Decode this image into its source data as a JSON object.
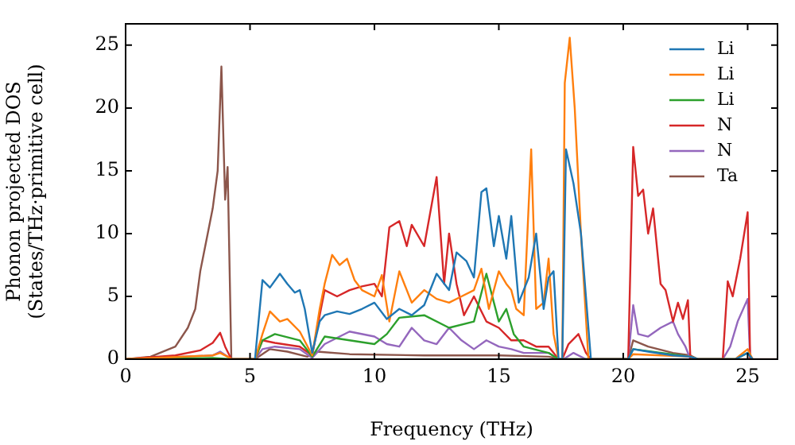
{
  "chart_data": {
    "type": "line",
    "xlabel": "Frequency (THz)",
    "ylabel": "Phonon projected DOS\n(States/THz·primitive cell)",
    "xlim": [
      0,
      26.2
    ],
    "ylim": [
      0,
      26.7
    ],
    "xticks": [
      0,
      5,
      10,
      15,
      20,
      25
    ],
    "yticks": [
      0,
      5,
      10,
      15,
      20,
      25
    ],
    "grid": false,
    "legend": "top right",
    "marker": "none",
    "line_style": "solid",
    "series": [
      {
        "name": "Li",
        "color": "#1f77b4",
        "x": [
          5.2,
          5.5,
          5.8,
          6.2,
          6.5,
          6.8,
          7.0,
          7.2,
          7.5,
          7.8,
          8,
          8.5,
          9,
          9.5,
          10,
          10.5,
          11,
          11.5,
          12,
          12.5,
          13,
          13.3,
          13.7,
          14,
          14.3,
          14.5,
          14.8,
          15,
          15.3,
          15.5,
          15.8,
          16.2,
          16.5,
          16.8,
          17,
          17.2,
          17.4,
          17.55,
          17.7,
          18.0,
          18.3,
          18.5,
          18.7,
          20.2,
          20.4,
          21,
          22,
          22.7,
          23,
          24.5,
          25,
          25.2
        ],
        "values": [
          0,
          6.3,
          5.7,
          6.8,
          6,
          5.3,
          5.5,
          4,
          0.5,
          3,
          3.5,
          3.8,
          3.6,
          4,
          4.5,
          3.2,
          4,
          3.5,
          4.3,
          6.8,
          5.5,
          8.5,
          7.8,
          6.5,
          13.3,
          13.6,
          9,
          11.4,
          8,
          11.4,
          4.5,
          6.5,
          10,
          4,
          6.5,
          7,
          0,
          0,
          16.7,
          14,
          10,
          5,
          0,
          0,
          0.8,
          0.6,
          0.3,
          0.2,
          0,
          0,
          0.5,
          0
        ]
      },
      {
        "name": "Li",
        "color": "#ff7f0e",
        "x": [
          0,
          3.5,
          3.8,
          4.1,
          4.25,
          5.2,
          5.5,
          5.8,
          6.2,
          6.5,
          7,
          7.5,
          7.8,
          8,
          8.3,
          8.6,
          8.9,
          9.2,
          9.5,
          10,
          10.3,
          10.6,
          11,
          11.5,
          12,
          12.5,
          13,
          13.5,
          14,
          14.3,
          14.6,
          15,
          15.3,
          15.5,
          15.7,
          16,
          16.3,
          16.5,
          16.8,
          17,
          17.2,
          17.4,
          17.55,
          17.65,
          17.85,
          18.05,
          18.3,
          18.6,
          20.2,
          20.4,
          22.7,
          23,
          24.5,
          25,
          25.2
        ],
        "values": [
          0,
          0.3,
          0.5,
          0.2,
          0,
          0,
          2,
          3.8,
          3,
          3.2,
          2.2,
          0.3,
          4,
          6,
          8.3,
          7.5,
          8,
          6.3,
          5.5,
          5,
          6.7,
          3,
          7,
          4.5,
          5.5,
          4.8,
          4.5,
          5,
          5.5,
          7.2,
          4,
          7,
          6,
          5.5,
          4,
          3.5,
          16.7,
          4,
          4.5,
          8,
          2,
          0,
          0,
          22,
          25.6,
          20,
          10,
          0,
          0,
          0.4,
          0.2,
          0,
          0,
          0.8,
          0
        ]
      },
      {
        "name": "Li",
        "color": "#2ca02c",
        "x": [
          0,
          3.5,
          4.25,
          5.2,
          5.5,
          6,
          7,
          7.5,
          8,
          9,
          10,
          10.5,
          11,
          12,
          13,
          14,
          14.5,
          15,
          15.3,
          15.6,
          16,
          17,
          17.4,
          20.2,
          20.4,
          22.7,
          23,
          24.5,
          25,
          25.2
        ],
        "values": [
          0,
          0.1,
          0,
          0,
          1.5,
          2,
          1.5,
          0.2,
          1.8,
          1.5,
          1.2,
          2,
          3.3,
          3.5,
          2.5,
          3,
          6.8,
          3,
          4,
          2,
          1,
          0.5,
          0,
          0,
          0.8,
          0.2,
          0,
          0,
          0.5,
          0
        ]
      },
      {
        "name": "N",
        "color": "#d62728",
        "x": [
          0,
          2,
          3,
          3.5,
          3.8,
          4.0,
          4.25,
          5.2,
          5.5,
          6,
          7,
          7.5,
          7.8,
          8,
          8.5,
          9,
          9.5,
          10,
          10.3,
          10.6,
          11,
          11.3,
          11.5,
          12,
          12.5,
          12.8,
          13,
          13.3,
          13.6,
          14,
          14.5,
          15,
          15.5,
          16,
          16.5,
          17,
          17.2,
          17.4,
          17.55,
          17.8,
          18.2,
          18.5,
          18.7,
          20.2,
          20.4,
          20.6,
          20.8,
          21,
          21.2,
          21.5,
          21.7,
          22,
          22.2,
          22.4,
          22.6,
          22.7,
          24.0,
          24.2,
          24.4,
          24.7,
          25.0,
          25.1
        ],
        "values": [
          0,
          0.3,
          0.7,
          1.3,
          2.1,
          1,
          0,
          0,
          1.5,
          1.3,
          1,
          0.3,
          3.5,
          5.5,
          5,
          5.5,
          5.8,
          6,
          5,
          10.5,
          11,
          9,
          10.7,
          9,
          14.5,
          6,
          10,
          6,
          3.5,
          5,
          3,
          2.5,
          1.5,
          1.5,
          1,
          1,
          0.5,
          0,
          0,
          1.2,
          2,
          0.5,
          0,
          0,
          16.9,
          13,
          13.5,
          10,
          12,
          6,
          5.5,
          3,
          4.5,
          3.2,
          4.7,
          0,
          0,
          6.2,
          5,
          8,
          11.7,
          0
        ]
      },
      {
        "name": "N",
        "color": "#9467bd",
        "x": [
          0,
          3.5,
          3.8,
          4.1,
          4.25,
          5.2,
          5.5,
          6,
          7,
          7.5,
          8,
          9,
          10,
          10.5,
          11,
          11.5,
          12,
          12.5,
          13,
          13.5,
          14,
          14.5,
          15,
          15.5,
          16,
          17,
          17.4,
          17.6,
          18,
          18.5,
          20.2,
          20.4,
          20.6,
          21,
          21.5,
          22,
          22.2,
          22.5,
          22.7,
          24.0,
          24.3,
          24.6,
          25.0,
          25.1
        ],
        "values": [
          0,
          0.3,
          0.6,
          0.2,
          0,
          0,
          0.8,
          1,
          0.8,
          0.1,
          1.2,
          2.2,
          1.8,
          1.2,
          1,
          2.5,
          1.5,
          1.2,
          2.5,
          1.5,
          0.8,
          1.5,
          1,
          0.8,
          0.5,
          0.5,
          0,
          0,
          0.5,
          0,
          0,
          4.3,
          2,
          1.8,
          2.5,
          3,
          2,
          1,
          0,
          0,
          1,
          3,
          4.8,
          0
        ]
      },
      {
        "name": "Ta",
        "color": "#8c564b",
        "x": [
          0,
          1,
          2,
          2.5,
          2.8,
          3.0,
          3.3,
          3.5,
          3.7,
          3.85,
          4.0,
          4.1,
          4.25,
          5.2,
          5.8,
          6.5,
          7.3,
          7.7,
          9,
          12,
          15,
          17,
          17.5,
          20.2,
          20.4,
          21,
          22,
          22.7,
          23,
          26.2
        ],
        "values": [
          0,
          0.2,
          1,
          2.5,
          4,
          7,
          10,
          12,
          15,
          23.3,
          12.7,
          15.3,
          0,
          0,
          0.8,
          0.6,
          0.2,
          0.6,
          0.4,
          0.3,
          0.3,
          0.2,
          0,
          0,
          1.5,
          1,
          0.5,
          0.3,
          0,
          0
        ]
      }
    ]
  }
}
